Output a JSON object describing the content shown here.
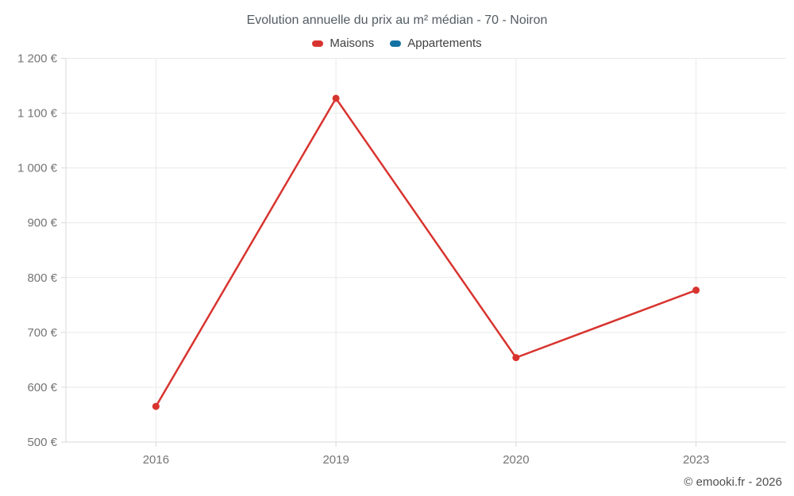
{
  "title": "Evolution annuelle du prix au m² médian - 70 - Noiron",
  "legend": {
    "items": [
      {
        "label": "Maisons",
        "color": "#d8342f"
      },
      {
        "label": "Appartements",
        "color": "#1272a3"
      }
    ]
  },
  "footer": {
    "credit": "© emooki.fr - 2026"
  },
  "colors": {
    "grid": "#e9e9e9",
    "axis": "#d9d9d9",
    "tick_label": "#757575",
    "title_text": "#525c63",
    "legend_text": "#3f3f3f",
    "footer_text": "#4f4f4f",
    "background": "#ffffff"
  },
  "chart_data": {
    "type": "line",
    "title": "Evolution annuelle du prix au m² médian - 70 - Noiron",
    "categories": [
      "2016",
      "2019",
      "2020",
      "2023"
    ],
    "series": [
      {
        "name": "Maisons",
        "color": "#d8342f",
        "values": [
          565,
          1127,
          654,
          777
        ]
      },
      {
        "name": "Appartements",
        "color": "#1272a3",
        "values": []
      }
    ],
    "xlabel": "",
    "ylabel": "",
    "ylim": [
      500,
      1200
    ],
    "ytick_step": 100,
    "ytick_suffix": " €",
    "grid": true,
    "legend_position": "top",
    "marker": "circle"
  }
}
